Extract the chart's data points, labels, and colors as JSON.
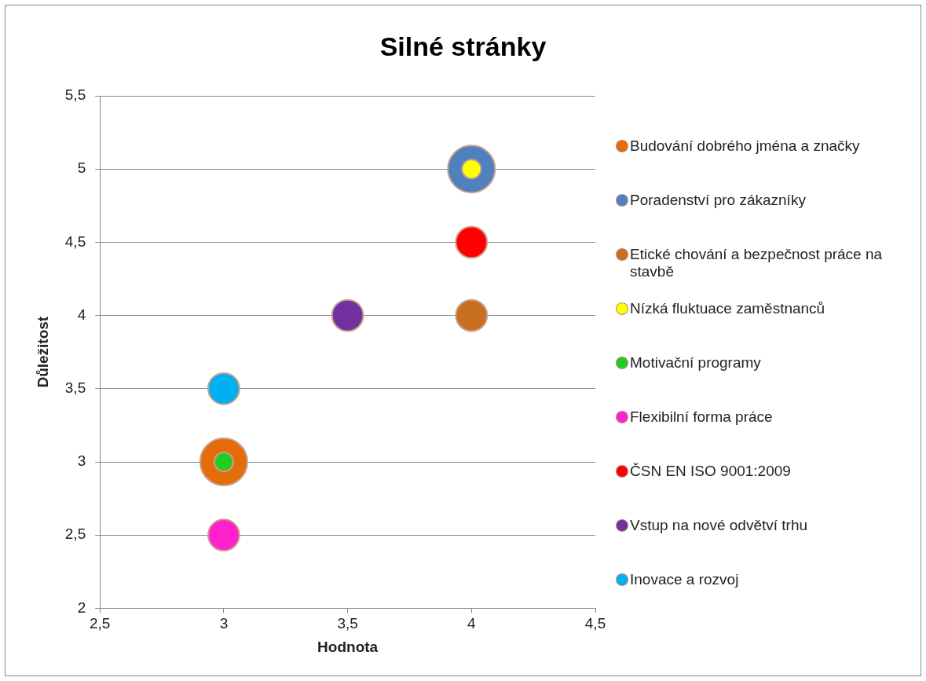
{
  "chart_data": {
    "type": "bubble",
    "title": "Silné stránky",
    "xlabel": "Hodnota",
    "ylabel": "Důležitost",
    "xlim": [
      2.5,
      4.5
    ],
    "xticks": [
      {
        "value": 2.5,
        "label": "2,5"
      },
      3,
      {
        "value": 3.5,
        "label": "3,5"
      },
      4,
      {
        "value": 4.5,
        "label": "4,5"
      }
    ],
    "ylim": [
      2,
      5.5
    ],
    "yticks": [
      2,
      {
        "value": 2.5,
        "label": "2,5"
      },
      3,
      {
        "value": 3.5,
        "label": "3,5"
      },
      4,
      {
        "value": 4.5,
        "label": "4,5"
      },
      5,
      {
        "value": 5.5,
        "label": "5,5"
      }
    ],
    "grid": "y",
    "legend": "right",
    "series": [
      {
        "name": "Budování dobrého jména a značky",
        "color": "#e46c0a",
        "x": [
          3
        ],
        "values": [
          3
        ],
        "sizes": [
          1
        ]
      },
      {
        "name": "Poradenství pro zákazníky",
        "color": "#4f81bd",
        "x": [
          4
        ],
        "values": [
          5
        ],
        "sizes": [
          1
        ]
      },
      {
        "name": "Etické chování a bezpečnost práce na stavbě",
        "color": "#c86f22",
        "x": [
          4
        ],
        "values": [
          4
        ],
        "sizes": [
          0.44
        ]
      },
      {
        "name": "Nízká fluktuace zaměstnanců",
        "color": "#ffff00",
        "x": [
          4
        ],
        "values": [
          5
        ],
        "sizes": [
          0.16
        ]
      },
      {
        "name": "Motivační programy",
        "color": "#22cc22",
        "x": [
          3
        ],
        "values": [
          3
        ],
        "sizes": [
          0.16
        ]
      },
      {
        "name": "Flexibilní forma práce",
        "color": "#ff22cc",
        "x": [
          3
        ],
        "values": [
          2.5
        ],
        "sizes": [
          0.44
        ]
      },
      {
        "name": "ČSN EN ISO 9001:2009",
        "color": "#ff0000",
        "x": [
          4
        ],
        "values": [
          4.5
        ],
        "sizes": [
          0.44
        ]
      },
      {
        "name": "Vstup na nové odvětví trhu",
        "color": "#7030a0",
        "x": [
          3.5
        ],
        "values": [
          4
        ],
        "sizes": [
          0.44
        ]
      },
      {
        "name": "Inovace a rozvoj",
        "color": "#00b0f0",
        "x": [
          3
        ],
        "values": [
          3.5
        ],
        "sizes": [
          0.44
        ]
      }
    ]
  }
}
